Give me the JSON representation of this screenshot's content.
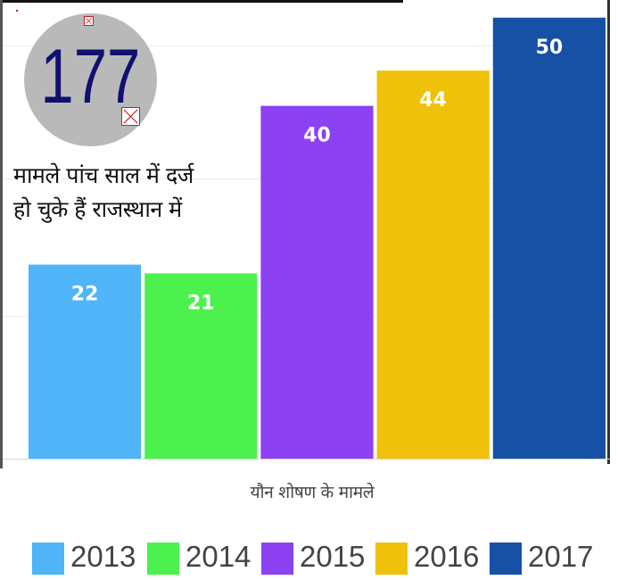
{
  "badge": {
    "number": "177"
  },
  "headline": {
    "line1": "मामले पांच साल में दर्ज",
    "line2": "हो चुके हैं राजस्थान में"
  },
  "chart_data": {
    "type": "bar",
    "categories": [
      "2013",
      "2014",
      "2015",
      "2016",
      "2017"
    ],
    "values": [
      22,
      21,
      40,
      44,
      50
    ],
    "colors": [
      "#4fb4f8",
      "#4cf14e",
      "#8c42f3",
      "#f0c10a",
      "#1751a6"
    ],
    "xlabel": "यौन शोषण के मामले",
    "ylim": [
      0,
      52
    ],
    "data_labels": true,
    "legend_position": "bottom"
  }
}
